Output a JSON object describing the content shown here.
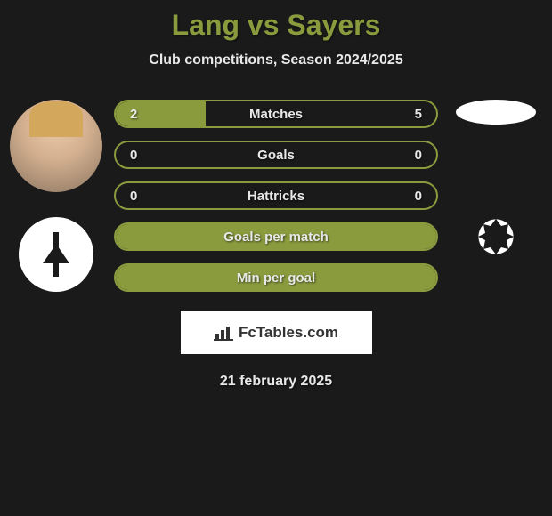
{
  "title": "Lang vs Sayers",
  "subtitle": "Club competitions, Season 2024/2025",
  "stats": [
    {
      "label": "Matches",
      "left_val": "2",
      "right_val": "5",
      "left_pct": 28,
      "show_values": true,
      "full_fill": false
    },
    {
      "label": "Goals",
      "left_val": "0",
      "right_val": "0",
      "left_pct": 0,
      "show_values": true,
      "full_fill": false
    },
    {
      "label": "Hattricks",
      "left_val": "0",
      "right_val": "0",
      "left_pct": 0,
      "show_values": true,
      "full_fill": false
    },
    {
      "label": "Goals per match",
      "left_val": "",
      "right_val": "",
      "left_pct": 0,
      "show_values": false,
      "full_fill": true
    },
    {
      "label": "Min per goal",
      "left_val": "",
      "right_val": "",
      "left_pct": 0,
      "show_values": false,
      "full_fill": true
    }
  ],
  "attribution": "FcTables.com",
  "date": "21 february 2025",
  "colors": {
    "accent": "#8a9b3e",
    "background": "#1a1a1a",
    "text": "#e8e8e8"
  }
}
